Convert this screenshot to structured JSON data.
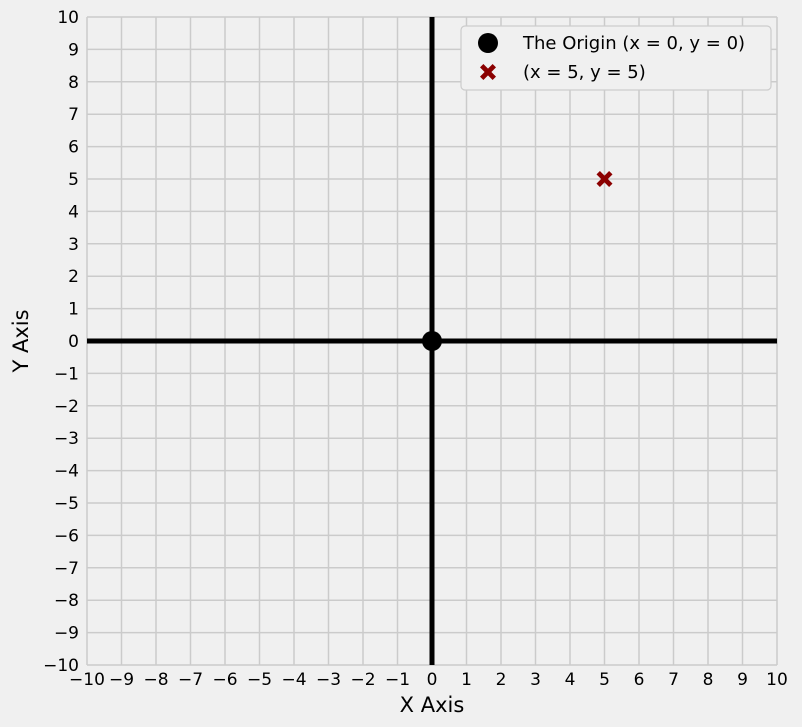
{
  "chart_data": {
    "type": "scatter",
    "xlabel": "X Axis",
    "ylabel": "Y Axis",
    "xlim": [
      -10,
      10
    ],
    "ylim": [
      -10,
      10
    ],
    "x_ticks": [
      "−10",
      "−9",
      "−8",
      "−7",
      "−6",
      "−5",
      "−4",
      "−3",
      "−2",
      "−1",
      "0",
      "1",
      "2",
      "3",
      "4",
      "5",
      "6",
      "7",
      "8",
      "9",
      "10"
    ],
    "y_ticks": [
      "−10",
      "−9",
      "−8",
      "−7",
      "−6",
      "−5",
      "−4",
      "−3",
      "−2",
      "−1",
      "0",
      "1",
      "2",
      "3",
      "4",
      "5",
      "6",
      "7",
      "8",
      "9",
      "10"
    ],
    "grid": true,
    "axis_lines": {
      "x": 0,
      "y": 0,
      "color": "#000000"
    },
    "background": "#f0f0f0",
    "grid_color": "#cbcbcb",
    "legend_position": "upper-right",
    "series": [
      {
        "name": "The Origin (x = 0, y = 0)",
        "marker": "circle",
        "color": "#000000",
        "points": [
          [
            0,
            0
          ]
        ]
      },
      {
        "name": "(x = 5, y = 5)",
        "marker": "x-filled",
        "color": "#8b0000",
        "points": [
          [
            5,
            5
          ]
        ]
      }
    ]
  }
}
